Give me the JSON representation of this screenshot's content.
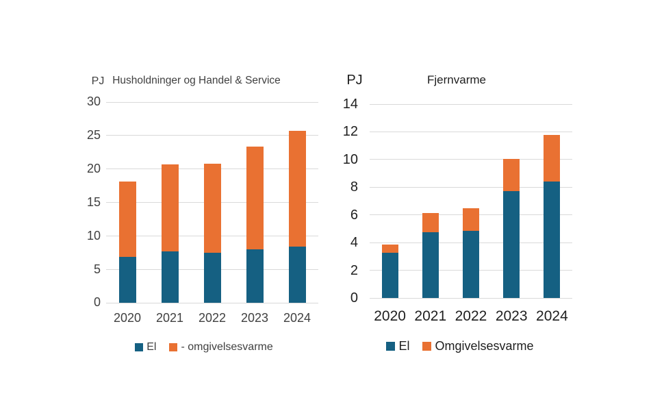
{
  "page": {
    "background": "#FFFFFF"
  },
  "colors": {
    "el": "#156082",
    "omgivelsesvarme": "#E97132",
    "gridline": "#D9D9D9",
    "left_text": "#404040",
    "right_text": "#1F1F1F"
  },
  "chart_data": [
    {
      "type": "bar",
      "stacked": true,
      "title": "Husholdninger og Handel & Service",
      "ylabel": "PJ",
      "xlabel": "",
      "categories": [
        "2020",
        "2021",
        "2022",
        "2023",
        "2024"
      ],
      "series": [
        {
          "name": "El",
          "color": "#156082",
          "values": [
            6.9,
            7.7,
            7.5,
            8.0,
            8.4
          ]
        },
        {
          "name": "- omgivelsesvarme",
          "color": "#E97132",
          "values": [
            11.2,
            13.0,
            13.25,
            15.3,
            17.3
          ]
        }
      ],
      "totals": [
        18.1,
        20.7,
        20.75,
        23.3,
        25.7
      ],
      "ylim": [
        0,
        30
      ],
      "yticks": [
        0,
        5,
        10,
        15,
        20,
        25,
        30
      ],
      "grid": true,
      "legend_position": "bottom"
    },
    {
      "type": "bar",
      "stacked": true,
      "title": "Fjernvarme",
      "ylabel": "PJ",
      "xlabel": "",
      "categories": [
        "2020",
        "2021",
        "2022",
        "2023",
        "2024"
      ],
      "series": [
        {
          "name": "El",
          "color": "#156082",
          "values": [
            3.25,
            4.75,
            4.85,
            7.7,
            8.4
          ]
        },
        {
          "name": "Omgivelsesvarme",
          "color": "#E97132",
          "values": [
            0.6,
            1.4,
            1.65,
            2.35,
            3.35
          ]
        }
      ],
      "totals": [
        3.85,
        6.15,
        6.5,
        10.05,
        11.75
      ],
      "ylim": [
        0,
        14
      ],
      "yticks": [
        0,
        2,
        4,
        6,
        8,
        10,
        12,
        14
      ],
      "grid": true,
      "legend_position": "bottom"
    }
  ]
}
